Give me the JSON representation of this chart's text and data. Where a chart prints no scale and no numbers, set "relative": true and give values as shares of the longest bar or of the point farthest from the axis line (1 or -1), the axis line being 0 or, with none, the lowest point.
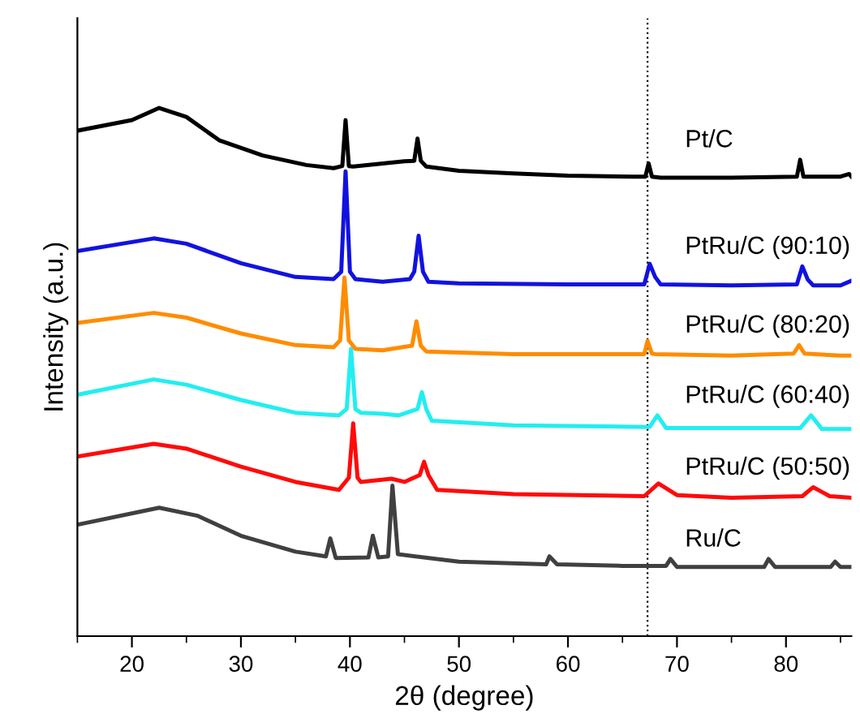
{
  "chart_data": {
    "type": "line",
    "xlabel": "2θ (degree)",
    "ylabel": "Intensity (a.u.)",
    "relative": true,
    "xlim": [
      15,
      86
    ],
    "xticks": [
      20,
      30,
      40,
      50,
      60,
      70,
      80
    ],
    "tick_labels": "x",
    "grid": false,
    "legend": false,
    "marker": "none",
    "line_style": "solid",
    "ref_lines": [
      {
        "axis": "x",
        "value": 67.3,
        "color": "#000000",
        "line_style": "dotted"
      }
    ],
    "series": [
      {
        "name": "Pt/C",
        "color": "#000000",
        "x": [
          15,
          20,
          22.5,
          25,
          28,
          32,
          36,
          38.5,
          39.3,
          39.6,
          39.9,
          40.3,
          43,
          45,
          45.9,
          46.2,
          46.5,
          47,
          50,
          55,
          60,
          66,
          67.1,
          67.4,
          67.7,
          68.5,
          75,
          81,
          81.3,
          81.6,
          82,
          85,
          85.8,
          86
        ],
        "values": [
          0.957,
          0.977,
          1.0,
          0.983,
          0.939,
          0.91,
          0.892,
          0.886,
          0.89,
          0.977,
          0.89,
          0.889,
          0.895,
          0.899,
          0.9,
          0.942,
          0.9,
          0.889,
          0.881,
          0.876,
          0.872,
          0.87,
          0.87,
          0.895,
          0.87,
          0.868,
          0.868,
          0.87,
          0.902,
          0.87,
          0.87,
          0.87,
          0.875,
          0.87
        ]
      },
      {
        "name": "PtRu/C (90:10)",
        "color": "#1212e0",
        "x": [
          15,
          22,
          25,
          30,
          35,
          38.5,
          39.2,
          39.6,
          40.0,
          40.5,
          43,
          45.5,
          45.9,
          46.3,
          46.7,
          47.2,
          50,
          60,
          67.0,
          67.5,
          68.0,
          68.5,
          75,
          81,
          81.5,
          82,
          82.5,
          85,
          86
        ],
        "values": [
          0.729,
          0.753,
          0.743,
          0.706,
          0.68,
          0.676,
          0.69,
          0.88,
          0.69,
          0.676,
          0.671,
          0.676,
          0.69,
          0.758,
          0.69,
          0.671,
          0.668,
          0.666,
          0.666,
          0.705,
          0.68,
          0.666,
          0.664,
          0.666,
          0.7,
          0.675,
          0.664,
          0.664,
          0.673
        ]
      },
      {
        "name": "PtRu/C (80:20)",
        "color": "#ff8c00",
        "x": [
          15,
          22,
          25,
          30,
          35,
          38.5,
          39.1,
          39.5,
          39.9,
          40.5,
          43,
          45.7,
          46.1,
          46.5,
          47,
          55,
          67.0,
          67.3,
          67.7,
          68,
          75,
          80.7,
          81.2,
          81.7,
          85,
          86
        ],
        "values": [
          0.593,
          0.612,
          0.603,
          0.573,
          0.551,
          0.547,
          0.56,
          0.679,
          0.56,
          0.544,
          0.541,
          0.55,
          0.596,
          0.55,
          0.539,
          0.534,
          0.534,
          0.559,
          0.535,
          0.534,
          0.531,
          0.535,
          0.551,
          0.535,
          0.531,
          0.531
        ]
      },
      {
        "name": "PtRu/C (60:40)",
        "color": "#22eef0",
        "x": [
          15,
          22,
          25,
          30,
          35,
          39,
          39.7,
          40.1,
          40.5,
          41,
          43,
          44.5,
          46.2,
          46.6,
          47.0,
          47.5,
          55,
          67.5,
          68.2,
          69,
          75,
          81.3,
          82.3,
          83.3,
          85,
          86
        ],
        "values": [
          0.457,
          0.486,
          0.476,
          0.447,
          0.423,
          0.418,
          0.43,
          0.544,
          0.43,
          0.423,
          0.421,
          0.418,
          0.43,
          0.462,
          0.43,
          0.408,
          0.399,
          0.396,
          0.418,
          0.394,
          0.394,
          0.394,
          0.418,
          0.392,
          0.392,
          0.392
        ]
      },
      {
        "name": "PtRu/C (50:50)",
        "color": "#ff0a0a",
        "x": [
          15,
          22,
          25,
          30,
          35,
          39,
          39.9,
          40.3,
          40.7,
          41,
          43.8,
          45,
          46.4,
          46.8,
          47.2,
          48,
          55,
          67,
          68.3,
          70,
          75,
          81.5,
          82.5,
          84,
          86
        ],
        "values": [
          0.34,
          0.364,
          0.355,
          0.321,
          0.292,
          0.277,
          0.3,
          0.403,
          0.3,
          0.292,
          0.298,
          0.292,
          0.305,
          0.33,
          0.305,
          0.277,
          0.269,
          0.265,
          0.289,
          0.267,
          0.262,
          0.265,
          0.282,
          0.265,
          0.262
        ]
      },
      {
        "name": "Ru/C",
        "color": "#404040",
        "x": [
          15,
          22.5,
          26,
          30,
          35,
          37.8,
          38.2,
          38.7,
          41.7,
          42.1,
          42.6,
          43.5,
          43.9,
          44.4,
          50,
          58,
          58.3,
          59,
          65,
          69,
          69.4,
          70,
          78,
          78.4,
          79,
          84.1,
          84.5,
          85,
          86
        ],
        "values": [
          0.211,
          0.243,
          0.228,
          0.19,
          0.16,
          0.151,
          0.185,
          0.148,
          0.149,
          0.19,
          0.149,
          0.151,
          0.285,
          0.155,
          0.141,
          0.136,
          0.151,
          0.136,
          0.133,
          0.133,
          0.146,
          0.131,
          0.131,
          0.146,
          0.131,
          0.131,
          0.141,
          0.131,
          0.131
        ]
      }
    ]
  }
}
